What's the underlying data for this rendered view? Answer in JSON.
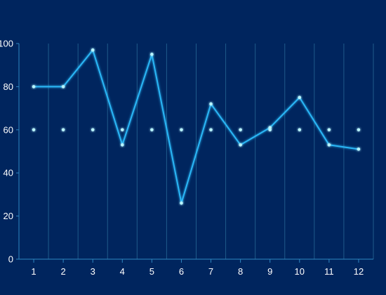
{
  "chart_data": {
    "type": "line",
    "categories": [
      "1",
      "2",
      "3",
      "4",
      "5",
      "6",
      "7",
      "8",
      "9",
      "10",
      "11",
      "12"
    ],
    "series": [
      {
        "values": [
          80,
          80,
          97,
          53,
          95,
          26,
          72,
          53,
          61,
          75,
          53,
          51
        ]
      },
      {
        "values": [
          60,
          60,
          60,
          60,
          60,
          60,
          60,
          60,
          60,
          60,
          60,
          60
        ]
      }
    ],
    "ylim": [
      0,
      100
    ],
    "yticks": [
      0,
      20,
      40,
      60,
      80,
      100
    ],
    "grid": {
      "vertical": true,
      "horizontal": false
    },
    "legend": "none",
    "colors": {
      "background": "#00255e",
      "series": [
        "#29b6f6",
        "#36c6d3"
      ],
      "point": "#b8f4ff",
      "grid": "#1f5a8a",
      "axis": "#2e86c1",
      "text": "#ffffff"
    }
  }
}
